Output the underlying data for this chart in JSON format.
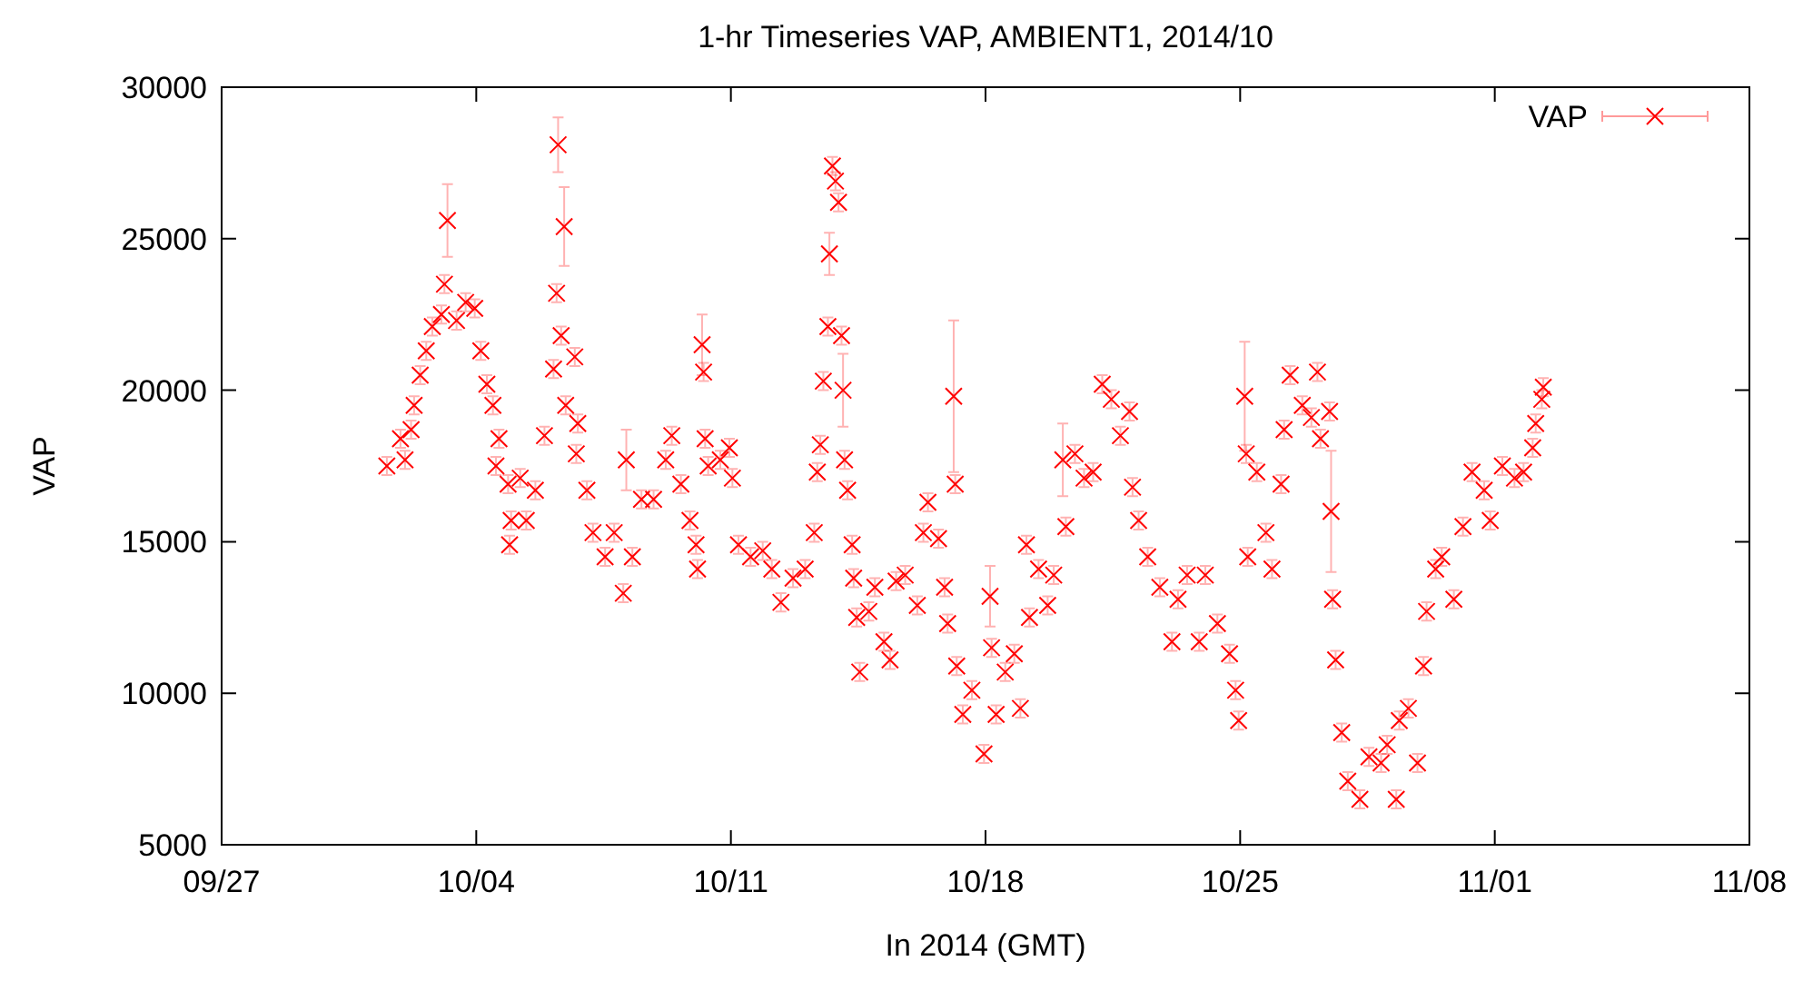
{
  "chart_data": {
    "type": "scatter",
    "title": "1-hr Timeseries VAP, AMBIENT1, 2014/10",
    "xlabel": "In 2014 (GMT)",
    "ylabel": "VAP",
    "xlim": [
      "2014-09-27",
      "2014-11-08"
    ],
    "xticks": [
      {
        "value": "2014-09-27",
        "label": "09/27"
      },
      {
        "value": "2014-10-04",
        "label": "10/04"
      },
      {
        "value": "2014-10-11",
        "label": "10/11"
      },
      {
        "value": "2014-10-18",
        "label": "10/18"
      },
      {
        "value": "2014-10-25",
        "label": "10/25"
      },
      {
        "value": "2014-11-01",
        "label": "11/01"
      },
      {
        "value": "2014-11-08",
        "label": "11/08"
      }
    ],
    "ylim": [
      5000,
      30000
    ],
    "yticks": [
      5000,
      10000,
      15000,
      20000,
      25000,
      30000
    ],
    "grid": false,
    "legend": "top right",
    "marker": "cross",
    "series": [
      {
        "name": "VAP",
        "color": "#ff0000",
        "x": [
          "2014-10-01T13:00",
          "2014-10-01T22:00",
          "2014-10-02T01:00",
          "2014-10-02T05:00",
          "2014-10-02T07:00",
          "2014-10-02T11:00",
          "2014-10-02T15:00",
          "2014-10-02T19:00",
          "2014-10-03T01:00",
          "2014-10-03T03:00",
          "2014-10-03T05:00",
          "2014-10-03T11:00",
          "2014-10-03T17:00",
          "2014-10-03T23:00",
          "2014-10-04T03:00",
          "2014-10-04T07:00",
          "2014-10-04T11:00",
          "2014-10-04T13:00",
          "2014-10-04T15:00",
          "2014-10-04T21:00",
          "2014-10-04T22:00",
          "2014-10-04T23:00",
          "2014-10-05T05:00",
          "2014-10-05T09:00",
          "2014-10-05T15:00",
          "2014-10-05T21:00",
          "2014-10-06T03:00",
          "2014-10-06T05:00",
          "2014-10-06T06:00",
          "2014-10-06T08:00",
          "2014-10-06T10:00",
          "2014-10-06T11:00",
          "2014-10-06T17:00",
          "2014-10-06T18:00",
          "2014-10-06T19:00",
          "2014-10-07T01:00",
          "2014-10-07T05:00",
          "2014-10-07T13:00",
          "2014-10-07T19:00",
          "2014-10-08T01:00",
          "2014-10-08T03:00",
          "2014-10-08T07:00",
          "2014-10-08T13:00",
          "2014-10-08T21:00",
          "2014-10-09T05:00",
          "2014-10-09T09:00",
          "2014-10-09T15:00",
          "2014-10-09T21:00",
          "2014-10-10T01:00",
          "2014-10-10T02:00",
          "2014-10-10T05:00",
          "2014-10-10T06:00",
          "2014-10-10T07:00",
          "2014-10-10T09:00",
          "2014-10-10T17:00",
          "2014-10-10T23:00",
          "2014-10-11T01:00",
          "2014-10-11T05:00",
          "2014-10-11T13:00",
          "2014-10-11T21:00",
          "2014-10-12T03:00",
          "2014-10-12T09:00",
          "2014-10-12T17:00",
          "2014-10-13T01:00",
          "2014-10-13T07:00",
          "2014-10-13T09:00",
          "2014-10-13T11:00",
          "2014-10-13T13:00",
          "2014-10-13T16:00",
          "2014-10-13T17:00",
          "2014-10-13T19:00",
          "2014-10-13T21:00",
          "2014-10-13T23:00",
          "2014-10-14T01:00",
          "2014-10-14T02:00",
          "2014-10-14T03:00",
          "2014-10-14T05:00",
          "2014-10-14T08:00",
          "2014-10-14T09:00",
          "2014-10-14T11:00",
          "2014-10-14T13:00",
          "2014-10-14T19:00",
          "2014-10-14T23:00",
          "2014-10-15T05:00",
          "2014-10-15T09:00",
          "2014-10-15T13:00",
          "2014-10-15T19:00",
          "2014-10-16T03:00",
          "2014-10-16T07:00",
          "2014-10-16T10:00",
          "2014-10-16T17:00",
          "2014-10-16T21:00",
          "2014-10-16T23:00",
          "2014-10-17T03:00",
          "2014-10-17T04:00",
          "2014-10-17T05:00",
          "2014-10-17T09:00",
          "2014-10-17T15:00",
          "2014-10-17T23:00",
          "2014-10-18T03:00",
          "2014-10-18T04:00",
          "2014-10-18T07:00",
          "2014-10-18T13:00",
          "2014-10-18T19:00",
          "2014-10-18T23:00",
          "2014-10-19T03:00",
          "2014-10-19T05:00",
          "2014-10-19T11:00",
          "2014-10-19T17:00",
          "2014-10-19T21:00",
          "2014-10-20T03:00",
          "2014-10-20T05:00",
          "2014-10-20T11:00",
          "2014-10-20T17:00",
          "2014-10-20T23:00",
          "2014-10-21T05:00",
          "2014-10-21T11:00",
          "2014-10-21T17:00",
          "2014-10-21T23:00",
          "2014-10-22T01:00",
          "2014-10-22T05:00",
          "2014-10-22T11:00",
          "2014-10-22T19:00",
          "2014-10-23T03:00",
          "2014-10-23T07:00",
          "2014-10-23T13:00",
          "2014-10-23T21:00",
          "2014-10-24T01:00",
          "2014-10-24T09:00",
          "2014-10-24T17:00",
          "2014-10-24T21:00",
          "2014-10-24T23:00",
          "2014-10-25T03:00",
          "2014-10-25T04:00",
          "2014-10-25T05:00",
          "2014-10-25T11:00",
          "2014-10-25T17:00",
          "2014-10-25T21:00",
          "2014-10-26T03:00",
          "2014-10-26T05:00",
          "2014-10-26T09:00",
          "2014-10-26T17:00",
          "2014-10-26T23:00",
          "2014-10-27T03:00",
          "2014-10-27T05:00",
          "2014-10-27T11:00",
          "2014-10-27T12:00",
          "2014-10-27T13:00",
          "2014-10-27T15:00",
          "2014-10-27T19:00",
          "2014-10-27T23:00",
          "2014-10-28T07:00",
          "2014-10-28T13:00",
          "2014-10-28T21:00",
          "2014-10-29T01:00",
          "2014-10-29T07:00",
          "2014-10-29T09:00",
          "2014-10-29T15:00",
          "2014-10-29T21:00",
          "2014-10-30T01:00",
          "2014-10-30T03:00",
          "2014-10-30T09:00",
          "2014-10-30T13:00",
          "2014-10-30T21:00",
          "2014-10-31T03:00",
          "2014-10-31T09:00",
          "2014-10-31T17:00",
          "2014-10-31T21:00",
          "2014-11-01T05:00",
          "2014-11-01T13:00",
          "2014-11-01T19:00",
          "2014-11-02T01:00",
          "2014-11-02T03:00",
          "2014-11-02T07:00",
          "2014-11-02T08:00"
        ],
        "values": [
          17500,
          18400,
          17700,
          18700,
          19500,
          20500,
          21300,
          22100,
          22500,
          23500,
          25600,
          22300,
          22900,
          22700,
          21300,
          20200,
          19500,
          17500,
          18400,
          16900,
          14900,
          15700,
          17100,
          15700,
          16700,
          18500,
          20700,
          23200,
          28100,
          21800,
          25400,
          19500,
          21100,
          17900,
          18900,
          16700,
          15300,
          14500,
          15300,
          13300,
          17700,
          14500,
          16400,
          16400,
          17700,
          18500,
          16900,
          15700,
          14900,
          14100,
          21500,
          20600,
          18400,
          17500,
          17700,
          18100,
          17100,
          14900,
          14500,
          14700,
          14100,
          13000,
          13800,
          14100,
          15300,
          17300,
          18200,
          20300,
          22100,
          24500,
          27400,
          26900,
          26200,
          21800,
          20000,
          17700,
          16700,
          14900,
          13800,
          12500,
          10700,
          12700,
          13500,
          11700,
          11100,
          13700,
          13900,
          12900,
          15300,
          16300,
          15100,
          13500,
          12300,
          19800,
          16900,
          10900,
          9300,
          10100,
          8000,
          13200,
          11500,
          9300,
          10700,
          11300,
          9500,
          14900,
          12500,
          14100,
          12900,
          13900,
          17700,
          15500,
          17900,
          17100,
          17300,
          20200,
          19700,
          18500,
          19300,
          16800,
          15700,
          14500,
          13500,
          11700,
          13100,
          13900,
          11700,
          13900,
          12300,
          11300,
          10100,
          9100,
          19800,
          17900,
          14500,
          17300,
          15300,
          14100,
          16900,
          18700,
          20500,
          19500,
          19100,
          20600,
          18400,
          19300,
          16000,
          13100,
          11100,
          8700,
          7100,
          6500,
          7900,
          7700,
          8300,
          6500,
          9100,
          9500,
          7700,
          10900,
          12700,
          14100,
          14500,
          13100,
          15500,
          17300,
          16700,
          15700,
          17500,
          17100,
          17300,
          18100,
          18900,
          19700,
          20100
        ],
        "errors": [
          300,
          300,
          300,
          300,
          300,
          300,
          300,
          300,
          300,
          300,
          1200,
          300,
          300,
          300,
          300,
          300,
          300,
          300,
          300,
          300,
          300,
          300,
          300,
          300,
          300,
          300,
          300,
          300,
          900,
          300,
          1300,
          300,
          300,
          300,
          300,
          300,
          300,
          300,
          300,
          300,
          1000,
          300,
          300,
          300,
          300,
          300,
          300,
          300,
          300,
          300,
          1000,
          300,
          300,
          300,
          300,
          300,
          300,
          300,
          300,
          300,
          300,
          300,
          300,
          300,
          300,
          300,
          300,
          300,
          300,
          700,
          300,
          300,
          300,
          300,
          1200,
          300,
          300,
          300,
          300,
          300,
          300,
          300,
          300,
          300,
          300,
          300,
          300,
          300,
          300,
          300,
          300,
          300,
          300,
          2500,
          300,
          300,
          300,
          300,
          300,
          1000,
          300,
          300,
          300,
          300,
          300,
          300,
          300,
          300,
          300,
          300,
          1200,
          300,
          300,
          300,
          300,
          300,
          300,
          300,
          300,
          300,
          300,
          300,
          300,
          300,
          300,
          300,
          300,
          300,
          300,
          300,
          300,
          300,
          1800,
          300,
          300,
          300,
          300,
          300,
          300,
          300,
          300,
          300,
          300,
          300,
          300,
          300,
          2000,
          300,
          300,
          300,
          300,
          300,
          300,
          300,
          300,
          300,
          300,
          300,
          300,
          300,
          300,
          300,
          300,
          300,
          300,
          300,
          300,
          300,
          300,
          300,
          300,
          300,
          300,
          300,
          300
        ]
      }
    ]
  }
}
